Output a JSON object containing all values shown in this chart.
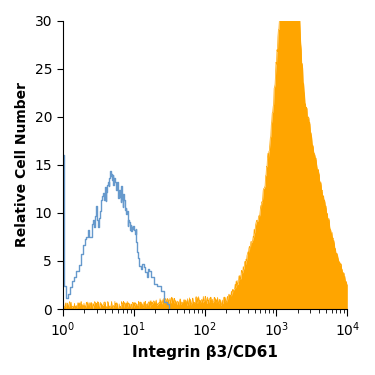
{
  "title": "",
  "xlabel": "Integrin β3/CD61",
  "ylabel": "Relative Cell Number",
  "xlim_log": [
    1,
    10000
  ],
  "ylim": [
    0,
    30
  ],
  "yticks": [
    0,
    5,
    10,
    15,
    20,
    25,
    30
  ],
  "blue_color": "#6699cc",
  "orange_color": "#FFA500",
  "background_color": "#ffffff"
}
